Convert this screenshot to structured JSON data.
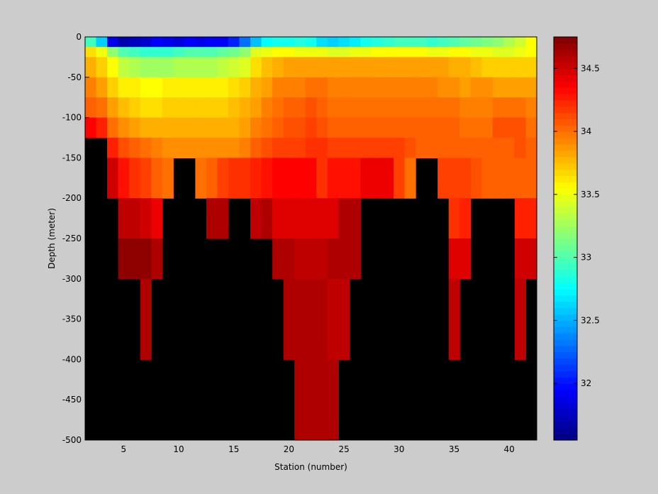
{
  "chart_data": {
    "type": "heatmap",
    "title": "",
    "xlabel": "Station (number)",
    "ylabel": "Depth (meter)",
    "xlim": [
      1.5,
      42.5
    ],
    "ylim": [
      -500,
      0
    ],
    "x_ticks": [
      5,
      10,
      15,
      20,
      25,
      30,
      35,
      40
    ],
    "y_ticks": [
      0,
      -50,
      -100,
      -150,
      -200,
      -250,
      -300,
      -350,
      -400,
      -450,
      -500
    ],
    "colorbar": {
      "colormap": "jet",
      "clim": [
        31.55,
        34.75
      ],
      "ticks": [
        32,
        32.5,
        33,
        33.5,
        34,
        34.5
      ]
    },
    "background_color": "#000000",
    "depth_bins": [
      {
        "top": 0,
        "bottom": -12.5
      },
      {
        "top": -12.5,
        "bottom": -25
      },
      {
        "top": -25,
        "bottom": -50
      },
      {
        "top": -50,
        "bottom": -75
      },
      {
        "top": -75,
        "bottom": -100
      },
      {
        "top": -100,
        "bottom": -125
      },
      {
        "top": -125,
        "bottom": -150
      },
      {
        "top": -150,
        "bottom": -200
      },
      {
        "top": -200,
        "bottom": -250
      },
      {
        "top": -250,
        "bottom": -300
      },
      {
        "top": -300,
        "bottom": -400
      },
      {
        "top": -400,
        "bottom": -500
      }
    ],
    "stations": [
      2,
      3,
      4,
      5,
      6,
      7,
      8,
      9,
      10,
      11,
      12,
      13,
      14,
      15,
      16,
      17,
      18,
      19,
      20,
      21,
      22,
      23,
      24,
      25,
      26,
      27,
      28,
      29,
      30,
      31,
      32,
      33,
      34,
      35,
      36,
      37,
      38,
      39,
      40,
      41,
      42
    ],
    "salinity_rows": [
      [
        32.95,
        32.6,
        31.9,
        31.7,
        31.75,
        31.8,
        31.95,
        31.9,
        31.85,
        31.95,
        31.9,
        31.95,
        31.95,
        32.05,
        32.3,
        32.55,
        32.75,
        32.8,
        32.8,
        32.85,
        32.8,
        32.65,
        32.6,
        32.65,
        32.7,
        32.8,
        32.85,
        32.9,
        32.95,
        32.95,
        32.95,
        32.9,
        32.95,
        33.0,
        33.05,
        33.1,
        33.15,
        33.2,
        33.3,
        33.4,
        33.55
      ],
      [
        33.65,
        33.5,
        33.2,
        33.0,
        32.95,
        32.9,
        32.9,
        32.9,
        32.95,
        33.0,
        33.0,
        33.0,
        33.05,
        33.1,
        33.2,
        33.45,
        33.5,
        33.55,
        33.55,
        33.5,
        33.5,
        33.5,
        33.45,
        33.45,
        33.5,
        33.5,
        33.55,
        33.55,
        33.55,
        33.55,
        33.55,
        33.5,
        33.5,
        33.55,
        33.55,
        33.5,
        33.5,
        33.45,
        33.45,
        33.5,
        33.55
      ],
      [
        33.8,
        33.7,
        33.55,
        33.35,
        33.3,
        33.25,
        33.25,
        33.25,
        33.3,
        33.3,
        33.3,
        33.3,
        33.35,
        33.4,
        33.45,
        33.65,
        33.75,
        33.8,
        33.85,
        33.85,
        33.85,
        33.85,
        33.85,
        33.85,
        33.85,
        33.85,
        33.85,
        33.85,
        33.85,
        33.85,
        33.85,
        33.85,
        33.85,
        33.8,
        33.8,
        33.75,
        33.7,
        33.7,
        33.7,
        33.7,
        33.7
      ],
      [
        33.95,
        33.85,
        33.7,
        33.6,
        33.6,
        33.55,
        33.55,
        33.6,
        33.6,
        33.6,
        33.6,
        33.6,
        33.6,
        33.65,
        33.7,
        33.8,
        33.85,
        33.95,
        33.95,
        33.95,
        34.0,
        34.0,
        33.95,
        33.95,
        33.95,
        33.95,
        33.95,
        33.95,
        33.95,
        33.95,
        33.95,
        33.95,
        33.9,
        33.9,
        33.85,
        33.9,
        33.9,
        33.85,
        33.85,
        33.85,
        33.85
      ],
      [
        34.05,
        34.0,
        33.85,
        33.75,
        33.7,
        33.65,
        33.65,
        33.7,
        33.7,
        33.7,
        33.7,
        33.7,
        33.7,
        33.75,
        33.8,
        33.85,
        33.95,
        34.0,
        34.05,
        34.05,
        34.1,
        34.05,
        34.0,
        34.0,
        34.0,
        34.0,
        34.0,
        34.0,
        34.0,
        34.0,
        34.0,
        34.0,
        34.0,
        34.0,
        33.95,
        33.95,
        33.95,
        34.0,
        34.0,
        34.0,
        33.95
      ],
      [
        34.35,
        34.25,
        34.0,
        33.9,
        33.85,
        33.8,
        33.8,
        33.8,
        33.8,
        33.8,
        33.8,
        33.8,
        33.8,
        33.8,
        33.85,
        33.95,
        34.0,
        34.05,
        34.1,
        34.1,
        34.15,
        34.1,
        34.05,
        34.05,
        34.05,
        34.05,
        34.05,
        34.05,
        34.05,
        34.05,
        34.05,
        34.05,
        34.05,
        34.05,
        34.0,
        34.0,
        34.0,
        34.1,
        34.1,
        34.1,
        34.0
      ],
      [
        null,
        null,
        34.25,
        34.1,
        34.05,
        34.0,
        33.95,
        33.9,
        33.9,
        33.9,
        33.9,
        33.9,
        33.9,
        33.9,
        33.95,
        34.05,
        34.1,
        34.15,
        34.15,
        34.15,
        34.2,
        34.2,
        34.15,
        34.15,
        34.15,
        34.15,
        34.15,
        34.15,
        34.15,
        34.1,
        34.05,
        34.05,
        34.05,
        34.05,
        34.05,
        34.05,
        34.05,
        34.05,
        34.05,
        34.1,
        34.05
      ],
      [
        null,
        null,
        34.5,
        34.3,
        34.2,
        34.15,
        34.05,
        34.0,
        null,
        null,
        34.0,
        34.05,
        34.15,
        34.2,
        34.2,
        34.25,
        34.3,
        34.35,
        34.35,
        34.35,
        34.35,
        34.2,
        34.3,
        34.3,
        34.3,
        34.4,
        34.4,
        34.4,
        34.15,
        34.0,
        null,
        null,
        34.15,
        34.15,
        34.15,
        34.1,
        34.05,
        34.05,
        34.05,
        34.05,
        34.05
      ],
      [
        null,
        null,
        null,
        34.55,
        34.55,
        34.5,
        34.4,
        null,
        null,
        null,
        null,
        34.6,
        34.6,
        null,
        null,
        34.55,
        34.6,
        34.45,
        34.45,
        34.45,
        34.45,
        34.45,
        34.45,
        34.6,
        34.6,
        null,
        null,
        null,
        null,
        null,
        null,
        null,
        null,
        34.2,
        34.25,
        null,
        null,
        null,
        null,
        34.25,
        34.25
      ],
      [
        null,
        null,
        null,
        34.7,
        34.7,
        34.7,
        34.6,
        null,
        null,
        null,
        null,
        null,
        null,
        null,
        null,
        null,
        null,
        34.6,
        34.6,
        34.55,
        34.55,
        34.55,
        34.6,
        34.6,
        34.6,
        null,
        null,
        null,
        null,
        null,
        null,
        null,
        null,
        34.45,
        34.45,
        null,
        null,
        null,
        null,
        34.5,
        34.5
      ],
      [
        null,
        null,
        null,
        null,
        null,
        34.6,
        null,
        null,
        null,
        null,
        null,
        null,
        null,
        null,
        null,
        null,
        null,
        null,
        34.6,
        34.6,
        34.6,
        34.6,
        34.55,
        34.55,
        null,
        null,
        null,
        null,
        null,
        null,
        null,
        null,
        null,
        34.55,
        null,
        null,
        null,
        null,
        null,
        34.55,
        null
      ],
      [
        null,
        null,
        null,
        null,
        null,
        null,
        null,
        null,
        null,
        null,
        null,
        null,
        null,
        null,
        null,
        null,
        null,
        null,
        null,
        34.6,
        34.6,
        34.6,
        34.6,
        null,
        null,
        null,
        null,
        null,
        null,
        null,
        null,
        null,
        null,
        null,
        null,
        null,
        null,
        null,
        null,
        null,
        null
      ]
    ]
  }
}
